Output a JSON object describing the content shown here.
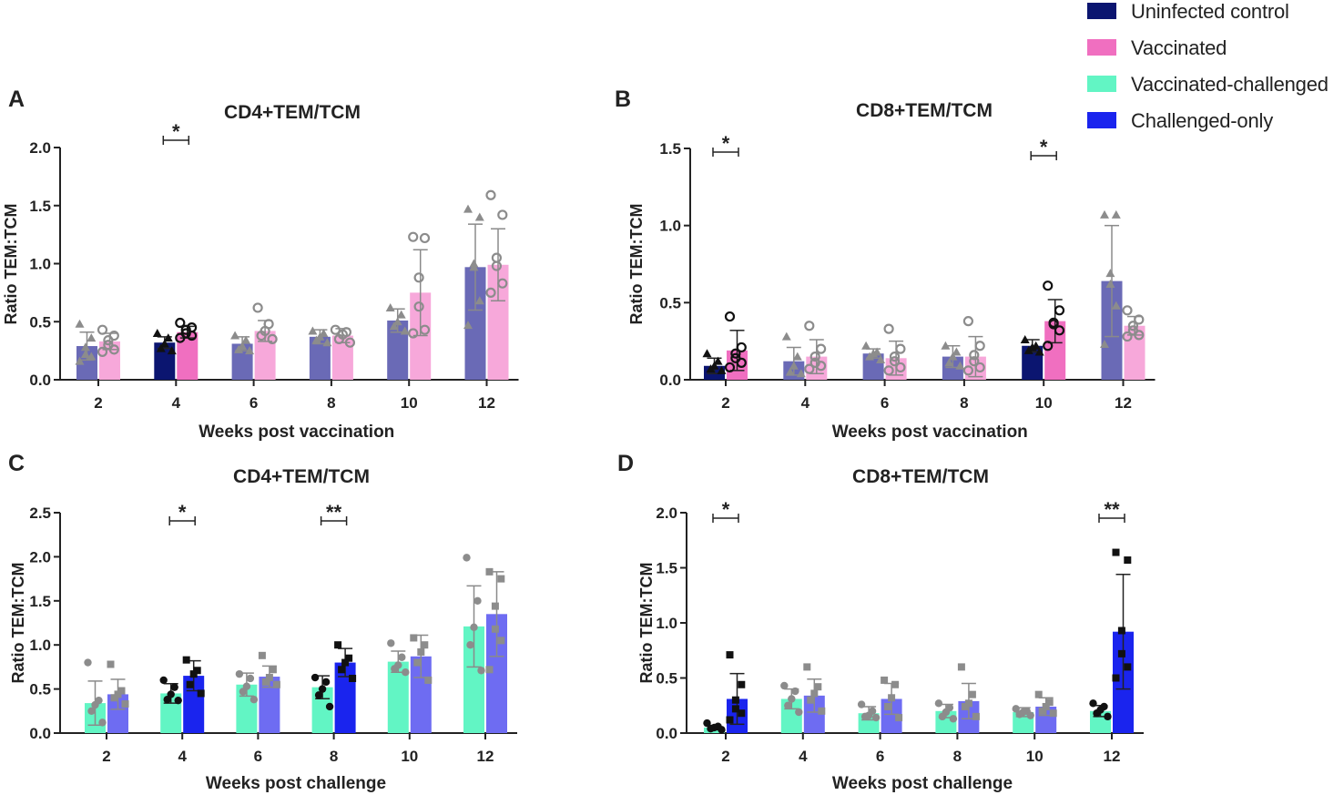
{
  "legend": {
    "items": [
      {
        "label": "Uninfected control",
        "color": "#0b1570"
      },
      {
        "label": "Vaccinated",
        "color": "#f06fc0"
      },
      {
        "label": "Vaccinated-challenged",
        "color": "#62f5c4"
      },
      {
        "label": "Challenged-only",
        "color": "#1a24ee"
      }
    ]
  },
  "chart_data": [
    {
      "panel": "A",
      "title": "CD4+TEM/TCM",
      "type": "bar",
      "xlabel": "Weeks post vaccination",
      "ylabel": "Ratio TEM:TCM",
      "ylim": [
        0,
        2.0
      ],
      "yticks": [
        "0.0",
        "0.5",
        "1.0",
        "1.5",
        "2.0"
      ],
      "categories": [
        "2",
        "4",
        "6",
        "8",
        "10",
        "12"
      ],
      "highlight": [
        1
      ],
      "series": [
        {
          "name": "Uninfected control",
          "marker": "triangle",
          "color": "#0b1570",
          "dim_color": "#6a6ab6",
          "values": [
            0.29,
            0.32,
            0.31,
            0.37,
            0.51,
            0.97
          ],
          "errors": [
            0.12,
            0.05,
            0.06,
            0.06,
            0.1,
            0.37
          ],
          "points": [
            [
              0.48,
              0.36,
              0.28,
              0.22,
              0.2,
              0.16
            ],
            [
              0.4,
              0.36,
              0.31,
              0.27,
              0.25
            ],
            [
              0.38,
              0.34,
              0.29,
              0.26,
              0.25
            ],
            [
              0.42,
              0.4,
              0.37,
              0.34,
              0.32
            ],
            [
              0.62,
              0.56,
              0.5,
              0.46,
              0.42
            ],
            [
              1.47,
              1.4,
              1.0,
              0.97,
              0.68,
              0.47
            ]
          ]
        },
        {
          "name": "Vaccinated",
          "marker": "circle",
          "color": "#f06fc0",
          "dim_color": "#f7a8da",
          "values": [
            0.33,
            0.41,
            0.42,
            0.38,
            0.75,
            0.99
          ],
          "errors": [
            0.07,
            0.05,
            0.09,
            0.06,
            0.37,
            0.31
          ],
          "points": [
            [
              0.43,
              0.38,
              0.34,
              0.3,
              0.26,
              0.24
            ],
            [
              0.49,
              0.45,
              0.43,
              0.4,
              0.38,
              0.36
            ],
            [
              0.62,
              0.48,
              0.42,
              0.38,
              0.35
            ],
            [
              0.43,
              0.41,
              0.39,
              0.35,
              0.32
            ],
            [
              1.23,
              1.22,
              0.88,
              0.63,
              0.43,
              0.4
            ],
            [
              1.59,
              1.42,
              1.05,
              0.98,
              0.83,
              0.75
            ]
          ]
        }
      ],
      "significance": [
        {
          "category": "4",
          "label": "*"
        }
      ]
    },
    {
      "panel": "B",
      "title": "CD8+TEM/TCM",
      "type": "bar",
      "xlabel": "Weeks post vaccination",
      "ylabel": "Ratio TEM:TCM",
      "ylim": [
        0,
        1.5
      ],
      "yticks": [
        "0.0",
        "0.5",
        "1.0",
        "1.5"
      ],
      "categories": [
        "2",
        "4",
        "6",
        "8",
        "10",
        "12"
      ],
      "highlight": [
        0,
        4
      ],
      "series": [
        {
          "name": "Uninfected control",
          "marker": "triangle",
          "color": "#0b1570",
          "dim_color": "#6a6ab6",
          "values": [
            0.09,
            0.12,
            0.17,
            0.15,
            0.22,
            0.64
          ],
          "errors": [
            0.05,
            0.09,
            0.03,
            0.07,
            0.04,
            0.36
          ],
          "points": [
            [
              0.17,
              0.12,
              0.09,
              0.07,
              0.06
            ],
            [
              0.28,
              0.15,
              0.09,
              0.05,
              0.04
            ],
            [
              0.22,
              0.18,
              0.17,
              0.15,
              0.13
            ],
            [
              0.22,
              0.18,
              0.15,
              0.11,
              0.09
            ],
            [
              0.26,
              0.22,
              0.21,
              0.19,
              0.18
            ],
            [
              1.07,
              1.07,
              0.69,
              0.62,
              0.48,
              0.23
            ]
          ]
        },
        {
          "name": "Vaccinated",
          "marker": "circle",
          "color": "#f06fc0",
          "dim_color": "#f7a8da",
          "values": [
            0.19,
            0.15,
            0.14,
            0.15,
            0.38,
            0.35
          ],
          "errors": [
            0.13,
            0.11,
            0.11,
            0.13,
            0.14,
            0.06
          ],
          "points": [
            [
              0.41,
              0.21,
              0.17,
              0.14,
              0.11,
              0.08
            ],
            [
              0.35,
              0.2,
              0.15,
              0.11,
              0.09,
              0.07
            ],
            [
              0.33,
              0.2,
              0.15,
              0.12,
              0.08,
              0.06
            ],
            [
              0.38,
              0.22,
              0.16,
              0.12,
              0.08,
              0.06
            ],
            [
              0.61,
              0.45,
              0.37,
              0.36,
              0.32,
              0.22
            ],
            [
              0.45,
              0.39,
              0.35,
              0.32,
              0.29,
              0.28
            ]
          ]
        }
      ],
      "significance": [
        {
          "category": "2",
          "label": "*"
        },
        {
          "category": "10",
          "label": "*"
        }
      ]
    },
    {
      "panel": "C",
      "title": "CD4+TEM/TCM",
      "type": "bar",
      "xlabel": "Weeks post challenge",
      "ylabel": "Ratio TEM:TCM",
      "ylim": [
        0,
        2.5
      ],
      "yticks": [
        "0.0",
        "0.5",
        "1.0",
        "1.5",
        "2.0",
        "2.5"
      ],
      "categories": [
        "2",
        "4",
        "6",
        "8",
        "10",
        "12"
      ],
      "highlight": [
        1,
        3
      ],
      "series": [
        {
          "name": "Vaccinated-challenged",
          "marker": "circle",
          "color": "#62f5c4",
          "dim_color": "#62f5c4",
          "values": [
            0.34,
            0.45,
            0.55,
            0.52,
            0.81,
            1.21
          ],
          "errors": [
            0.25,
            0.11,
            0.13,
            0.13,
            0.12,
            0.46
          ],
          "points": [
            [
              0.8,
              0.37,
              0.32,
              0.25,
              0.12
            ],
            [
              0.6,
              0.52,
              0.44,
              0.38,
              0.37
            ],
            [
              0.67,
              0.62,
              0.53,
              0.47,
              0.38
            ],
            [
              0.63,
              0.58,
              0.5,
              0.43,
              0.3
            ],
            [
              1.02,
              0.86,
              0.77,
              0.73,
              0.69
            ],
            [
              1.99,
              1.5,
              1.2,
              1.0,
              0.71
            ]
          ]
        },
        {
          "name": "Challenged-only",
          "marker": "square",
          "color": "#1a24ee",
          "dim_color": "#6e6cf2",
          "values": [
            0.44,
            0.65,
            0.64,
            0.8,
            0.87,
            1.35
          ],
          "errors": [
            0.17,
            0.17,
            0.12,
            0.16,
            0.24,
            0.48
          ],
          "points": [
            [
              0.78,
              0.48,
              0.44,
              0.4,
              0.33
            ],
            [
              0.83,
              0.71,
              0.67,
              0.55,
              0.45
            ],
            [
              0.88,
              0.72,
              0.63,
              0.58,
              0.55
            ],
            [
              1.0,
              0.85,
              0.8,
              0.72,
              0.62
            ],
            [
              1.08,
              1.0,
              0.92,
              0.8,
              0.6
            ],
            [
              1.83,
              1.75,
              1.44,
              1.18,
              1.05,
              0.72
            ]
          ]
        }
      ],
      "significance": [
        {
          "category": "4",
          "label": "*"
        },
        {
          "category": "8",
          "label": "**"
        }
      ]
    },
    {
      "panel": "D",
      "title": "CD8+TEM/TCM",
      "type": "bar",
      "xlabel": "Weeks post challenge",
      "ylabel": "Ratio TEM:TCM",
      "ylim": [
        0,
        2.0
      ],
      "yticks": [
        "0.0",
        "0.5",
        "1.0",
        "1.5",
        "2.0"
      ],
      "categories": [
        "2",
        "4",
        "6",
        "8",
        "10",
        "12"
      ],
      "highlight": [
        0,
        5
      ],
      "series": [
        {
          "name": "Vaccinated-challenged",
          "marker": "circle",
          "color": "#62f5c4",
          "dim_color": "#62f5c4",
          "values": [
            0.05,
            0.31,
            0.18,
            0.2,
            0.19,
            0.2
          ],
          "errors": [
            0.02,
            0.09,
            0.06,
            0.06,
            0.04,
            0.05
          ],
          "points": [
            [
              0.09,
              0.06,
              0.05,
              0.04,
              0.03
            ],
            [
              0.43,
              0.38,
              0.31,
              0.25,
              0.19
            ],
            [
              0.26,
              0.2,
              0.16,
              0.15,
              0.14
            ],
            [
              0.27,
              0.23,
              0.19,
              0.15,
              0.13
            ],
            [
              0.22,
              0.2,
              0.19,
              0.17,
              0.16
            ],
            [
              0.27,
              0.24,
              0.21,
              0.18,
              0.15
            ]
          ]
        },
        {
          "name": "Challenged-only",
          "marker": "square",
          "color": "#1a24ee",
          "dim_color": "#6e6cf2",
          "values": [
            0.31,
            0.34,
            0.31,
            0.29,
            0.24,
            0.92
          ],
          "errors": [
            0.23,
            0.15,
            0.14,
            0.16,
            0.08,
            0.52
          ],
          "points": [
            [
              0.71,
              0.44,
              0.3,
              0.22,
              0.18,
              0.12
            ],
            [
              0.6,
              0.42,
              0.36,
              0.3,
              0.2
            ],
            [
              0.48,
              0.44,
              0.32,
              0.24,
              0.14
            ],
            [
              0.6,
              0.35,
              0.27,
              0.24,
              0.15
            ],
            [
              0.35,
              0.28,
              0.24,
              0.2,
              0.18
            ],
            [
              1.64,
              1.57,
              0.93,
              0.72,
              0.6,
              0.5
            ]
          ]
        }
      ],
      "significance": [
        {
          "category": "2",
          "label": "*"
        },
        {
          "category": "12",
          "label": "**"
        }
      ]
    }
  ],
  "panel_labels": [
    "A",
    "B",
    "C",
    "D"
  ]
}
